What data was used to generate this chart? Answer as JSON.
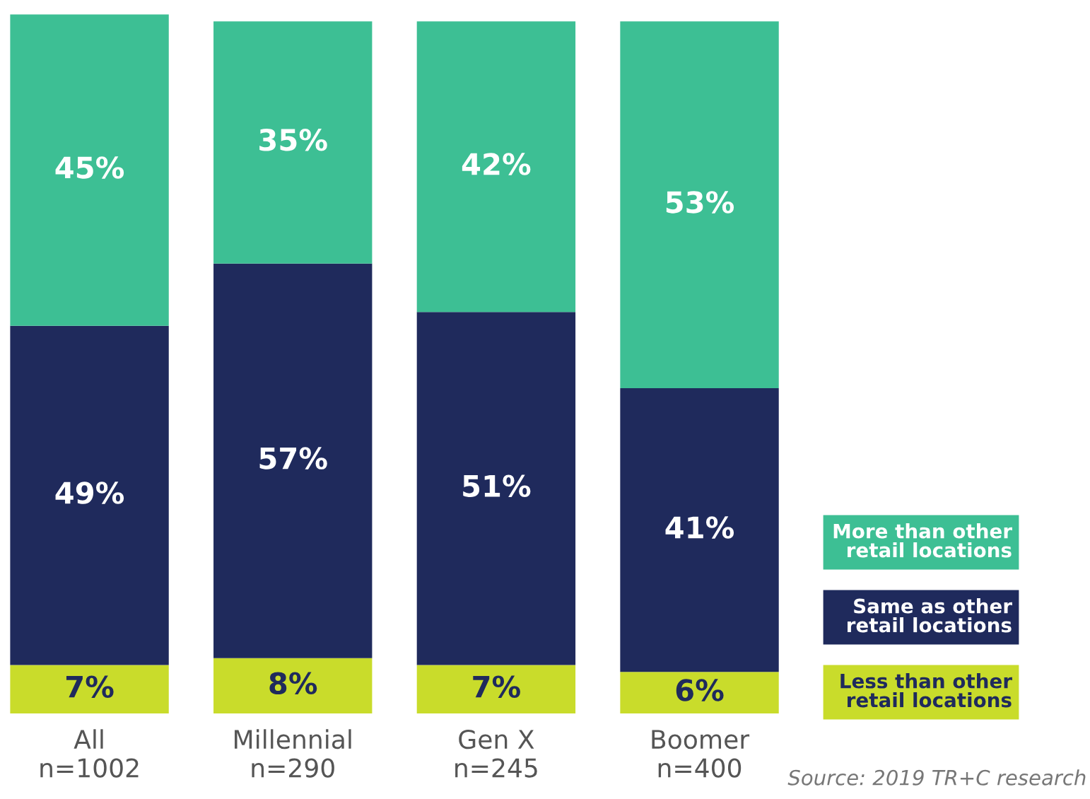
{
  "chart_data": {
    "type": "bar",
    "stacked": true,
    "categories": [
      "All\nn=1002",
      "Millennial\nn=290",
      "Gen X\nn=245",
      "Boomer\nn=400"
    ],
    "series": [
      {
        "name": "Less than other\nretail locations",
        "color": "#c9dc2b",
        "values": [
          7,
          8,
          7,
          6
        ],
        "value_labels": [
          "7%",
          "8%",
          "7%",
          "6%"
        ]
      },
      {
        "name": "Same as other\nretail locations",
        "color": "#1f2a5c",
        "values": [
          49,
          57,
          51,
          41
        ],
        "value_labels": [
          "49%",
          "57%",
          "51%",
          "41%"
        ]
      },
      {
        "name": "More than other\nretail locations",
        "color": "#3dbf94",
        "values": [
          45,
          35,
          42,
          53
        ],
        "value_labels": [
          "45%",
          "35%",
          "42%",
          "53%"
        ]
      }
    ],
    "ylim": [
      0,
      101
    ],
    "tick_labels": "x",
    "grid": false,
    "legend": "right",
    "annotations": [
      "Source: 2019 TR+C research"
    ]
  }
}
